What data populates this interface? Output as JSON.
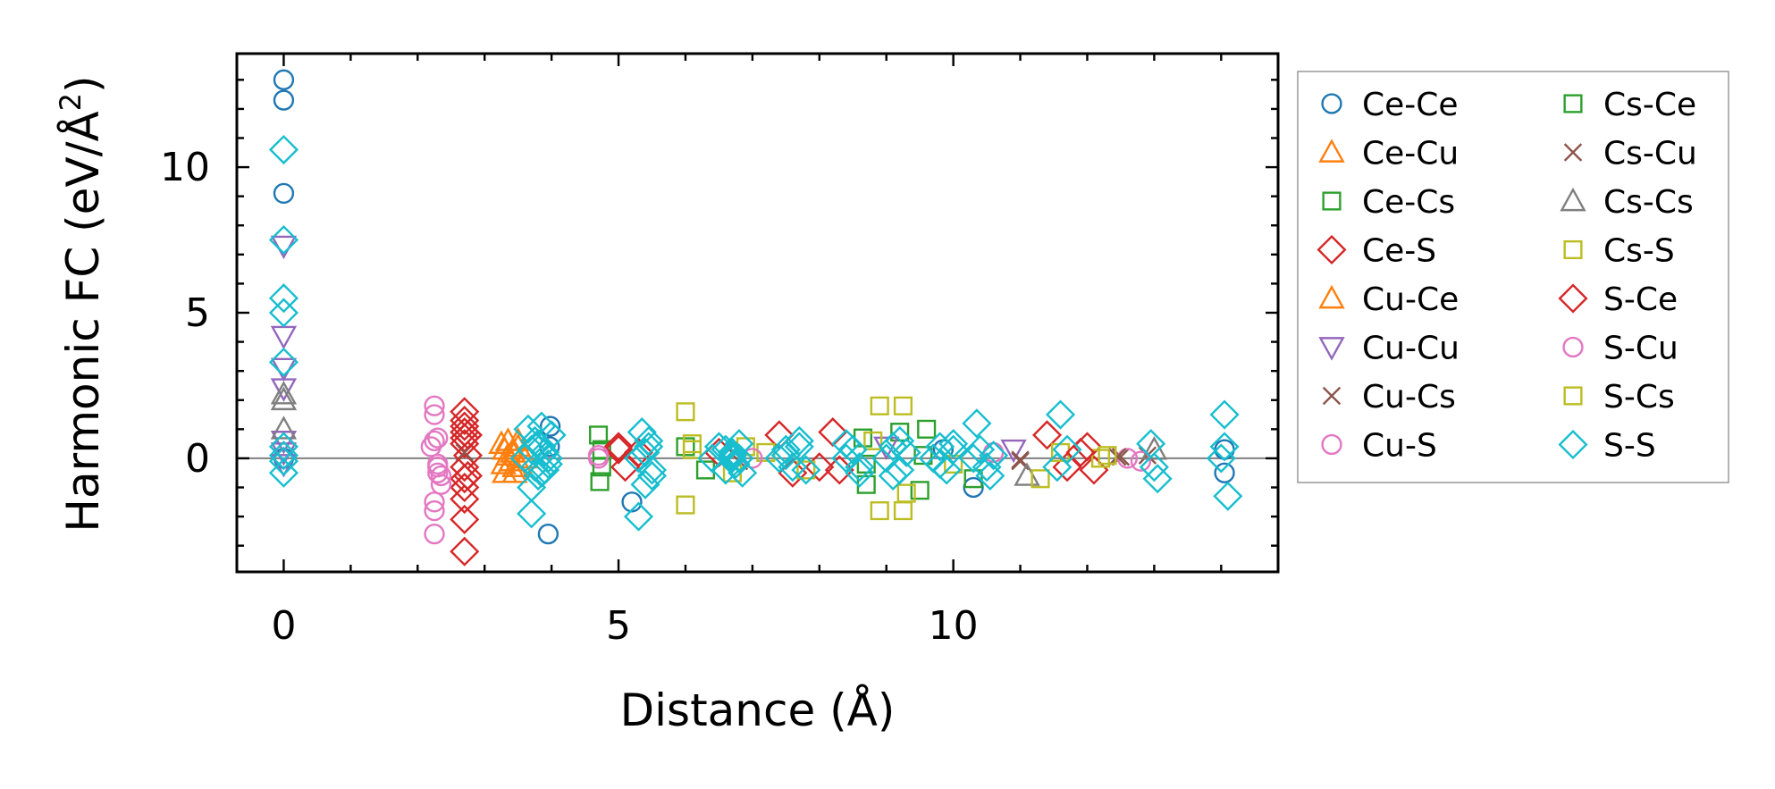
{
  "chart_data": {
    "type": "scatter",
    "xlabel": "Distance (Å)",
    "ylabel_main": "Harmonic FC (eV/Å",
    "ylabel_sup": "2",
    "ylabel_close": ")",
    "xlim": [
      -0.7,
      14.85
    ],
    "ylim": [
      -3.9,
      13.9
    ],
    "xticks": [
      0,
      5,
      10
    ],
    "xtick_labels": [
      "0",
      "5",
      "10"
    ],
    "yticks": [
      0,
      5,
      10
    ],
    "ytick_labels": [
      "0",
      "5",
      "10"
    ],
    "x_minor_step": 1,
    "y_minor_step": 1,
    "zero_line": true,
    "legend_position": "outside-right",
    "series": [
      {
        "name": "Ce-Ce",
        "marker": "circle",
        "color": "#1f77b4",
        "x": [
          0,
          0,
          0,
          0,
          3.95,
          3.98,
          3.97,
          5.2,
          9.85,
          10.3,
          14.05,
          14.05
        ],
        "y": [
          13.0,
          12.3,
          9.1,
          0.0,
          -2.6,
          1.1,
          0.4,
          -1.5,
          0.3,
          -1.0,
          0.3,
          -0.5
        ]
      },
      {
        "name": "Ce-Cu",
        "marker": "triangle-up",
        "color": "#ff7f0e",
        "x": [
          3.25,
          3.3,
          3.35,
          3.4,
          3.45,
          3.3,
          3.35,
          3.28,
          3.42
        ],
        "y": [
          0.5,
          0.3,
          0.1,
          -0.1,
          -0.3,
          -0.5,
          0.6,
          -0.2,
          0.2
        ]
      },
      {
        "name": "Ce-Cs",
        "marker": "square",
        "color": "#2ca02c",
        "x": [
          4.7,
          4.72,
          4.75,
          6.3,
          8.7,
          9.2,
          9.6,
          9.5,
          10.3,
          8.65
        ],
        "y": [
          0.8,
          -0.8,
          0.3,
          -0.4,
          -0.9,
          0.9,
          1.0,
          -1.1,
          -0.7,
          0.7
        ]
      },
      {
        "name": "Ce-S",
        "marker": "diamond",
        "color": "#d62728",
        "x": [
          2.7,
          2.7,
          2.7,
          2.7,
          2.7,
          2.7,
          2.7,
          2.7,
          2.7,
          2.7,
          2.7,
          2.7,
          5.0,
          5.1,
          5.3,
          7.4,
          7.6,
          8.2,
          8.3,
          11.4,
          11.7,
          12.0,
          12.1
        ],
        "y": [
          1.6,
          1.3,
          1.1,
          0.9,
          0.7,
          0.5,
          -0.3,
          -0.7,
          -1.0,
          -1.4,
          -2.1,
          -3.2,
          0.4,
          -0.3,
          0.2,
          0.8,
          -0.5,
          0.9,
          -0.4,
          0.8,
          -0.3,
          0.4,
          -0.4
        ]
      },
      {
        "name": "Cu-Ce",
        "marker": "triangle-up",
        "color": "#ff7f0e",
        "x": [
          3.5,
          3.55,
          3.6,
          3.5,
          3.45
        ],
        "y": [
          0.4,
          -0.3,
          0.0,
          0.6,
          -0.5
        ]
      },
      {
        "name": "Cu-Cu",
        "marker": "triangle-down",
        "color": "#9467bd",
        "x": [
          0,
          0,
          0,
          0,
          0,
          0,
          0,
          9.0,
          10.9
        ],
        "y": [
          7.3,
          4.2,
          3.1,
          2.4,
          0.6,
          0.2,
          -0.2,
          0.4,
          0.3
        ]
      },
      {
        "name": "Cu-Cs",
        "marker": "x",
        "color": "#8c564b",
        "x": [
          2.7,
          11.0,
          12.5,
          12.9,
          6.8
        ],
        "y": [
          0.2,
          -0.1,
          0.05,
          0.1,
          -0.1
        ]
      },
      {
        "name": "Cu-S",
        "marker": "circle",
        "color": "#e377c2",
        "x": [
          2.25,
          2.25,
          2.25,
          2.3,
          2.3,
          2.3,
          2.35,
          2.35,
          2.25,
          2.25,
          2.25,
          4.7,
          10.6,
          12.6,
          12.8
        ],
        "y": [
          1.8,
          1.5,
          0.6,
          0.7,
          -0.2,
          -0.5,
          -0.6,
          -0.9,
          -1.5,
          -1.8,
          -2.6,
          0.0,
          0.2,
          0.0,
          -0.1
        ]
      },
      {
        "name": "Cs-Ce",
        "marker": "square",
        "color": "#2ca02c",
        "x": [
          4.75,
          6.0,
          8.7,
          9.55
        ],
        "y": [
          -0.3,
          0.4,
          -0.2,
          0.1
        ]
      },
      {
        "name": "Cs-Cu",
        "marker": "x",
        "color": "#8c564b",
        "x": [
          12.45,
          11.0
        ],
        "y": [
          0.05,
          -0.05
        ]
      },
      {
        "name": "Cs-Cs",
        "marker": "triangle-up",
        "color": "#7f7f7f",
        "x": [
          0,
          0,
          0,
          11.1,
          13.0
        ],
        "y": [
          2.2,
          2.0,
          1.0,
          -0.6,
          0.3
        ]
      },
      {
        "name": "Cs-S",
        "marker": "square",
        "color": "#bcbd22",
        "x": [
          6.0,
          6.0,
          6.1,
          6.7,
          6.9,
          7.2,
          8.9,
          8.9,
          9.25,
          9.25,
          9.3,
          11.3,
          11.6,
          12.2,
          12.3
        ],
        "y": [
          1.6,
          -1.6,
          0.3,
          -0.5,
          0.4,
          0.2,
          1.8,
          -1.8,
          1.8,
          -1.8,
          -1.2,
          -0.7,
          0.2,
          0.0,
          0.1
        ]
      },
      {
        "name": "S-Ce",
        "marker": "diamond",
        "color": "#d62728",
        "x": [
          2.75,
          2.75,
          2.75,
          5.0,
          6.5,
          8.0,
          11.9
        ],
        "y": [
          0.8,
          -0.6,
          0.1,
          0.3,
          0.2,
          -0.3,
          0.2
        ]
      },
      {
        "name": "S-Cu",
        "marker": "circle",
        "color": "#e377c2",
        "x": [
          2.2,
          2.3,
          4.7,
          7.0
        ],
        "y": [
          0.4,
          -0.3,
          0.1,
          0.0
        ]
      },
      {
        "name": "S-Cs",
        "marker": "square",
        "color": "#bcbd22",
        "x": [
          6.1,
          7.8,
          8.8,
          10.0
        ],
        "y": [
          0.5,
          -0.4,
          0.6,
          -0.2
        ]
      },
      {
        "name": "S-S",
        "marker": "diamond",
        "color": "#17becf",
        "x": [
          0,
          0,
          0,
          0,
          0,
          0,
          0,
          0,
          0,
          3.6,
          3.7,
          3.75,
          3.8,
          3.85,
          3.9,
          3.95,
          4.0,
          3.65,
          3.7,
          3.75,
          3.8,
          3.85,
          3.9,
          3.95,
          3.7,
          3.85,
          5.3,
          5.35,
          5.4,
          5.45,
          5.5,
          5.4,
          5.45,
          5.5,
          5.3,
          6.4,
          6.5,
          6.6,
          6.7,
          6.75,
          6.8,
          6.85,
          6.6,
          6.7,
          6.8,
          6.7,
          7.4,
          7.5,
          7.6,
          7.7,
          7.8,
          7.5,
          7.7,
          8.4,
          8.5,
          8.6,
          8.4,
          8.6,
          9.0,
          9.1,
          9.2,
          9.3,
          9.1,
          9.2,
          9.7,
          9.8,
          9.9,
          10.0,
          9.8,
          10.0,
          10.3,
          10.4,
          10.5,
          10.6,
          10.35,
          10.55,
          11.6,
          11.7,
          11.55,
          12.95,
          13.0,
          13.05,
          14.05,
          14.05,
          14.1,
          14.0
        ],
        "y": [
          10.6,
          7.5,
          5.5,
          5.0,
          3.3,
          0.4,
          -0.5,
          0.1,
          -0.1,
          0.0,
          0.3,
          -0.3,
          0.5,
          -0.5,
          0.2,
          -0.2,
          0.8,
          1.0,
          -1.0,
          0.6,
          -0.6,
          0.4,
          -0.4,
          0.0,
          -1.9,
          1.1,
          0.0,
          0.9,
          -0.9,
          0.4,
          -0.4,
          0.2,
          0.6,
          -0.6,
          -2.0,
          0.0,
          0.4,
          -0.4,
          0.2,
          -0.2,
          0.5,
          -0.5,
          0.3,
          0.0,
          0.0,
          0.1,
          0.0,
          0.3,
          -0.3,
          0.4,
          -0.4,
          0.1,
          0.6,
          0.0,
          0.3,
          -0.3,
          0.5,
          -0.5,
          0.0,
          0.4,
          -0.4,
          0.2,
          -0.6,
          0.6,
          0.0,
          0.4,
          -0.4,
          0.3,
          -0.2,
          0.5,
          0.0,
          0.3,
          -0.3,
          0.1,
          1.2,
          -0.6,
          1.5,
          0.3,
          -0.3,
          0.5,
          -0.3,
          -0.7,
          1.5,
          0.4,
          -1.3,
          0.0
        ]
      }
    ]
  }
}
